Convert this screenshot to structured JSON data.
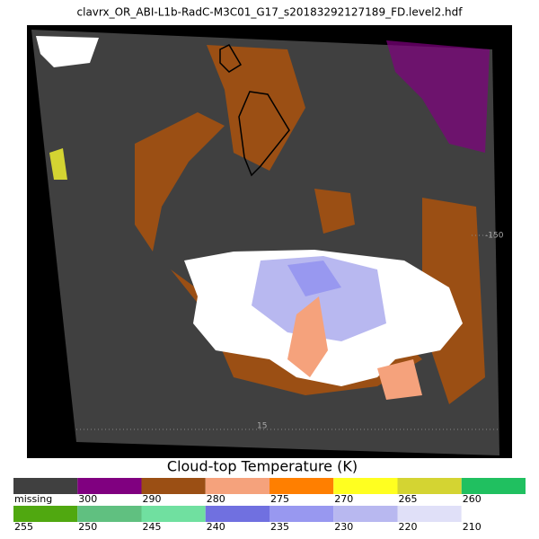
{
  "title": "clavrx_OR_ABI-L1b-RadC-M3C01_G17_s20183292127189_FD.level2.hdf",
  "map": {
    "lon_label": "-150",
    "lat_label": "15"
  },
  "legend": {
    "title": "Cloud-top Temperature (K)",
    "rows": [
      [
        {
          "label": "missing",
          "color": "#404040"
        },
        {
          "label": "300",
          "color": "#800080"
        },
        {
          "label": "290",
          "color": "#9b4f14"
        },
        {
          "label": "280",
          "color": "#f5a27c"
        },
        {
          "label": "275",
          "color": "#ff7f00"
        },
        {
          "label": "270",
          "color": "#ffff20"
        },
        {
          "label": "265",
          "color": "#d4d432"
        },
        {
          "label": "260",
          "color": "#20c060"
        }
      ],
      [
        {
          "label": "255",
          "color": "#50a810"
        },
        {
          "label": "250",
          "color": "#60c080"
        },
        {
          "label": "245",
          "color": "#70e0a0"
        },
        {
          "label": "240",
          "color": "#7070e0"
        },
        {
          "label": "235",
          "color": "#9898f0"
        },
        {
          "label": "230",
          "color": "#b8b8f0"
        },
        {
          "label": "220",
          "color": "#e0e0f8"
        },
        {
          "label": "210",
          "color": "#ffffff"
        }
      ]
    ]
  }
}
